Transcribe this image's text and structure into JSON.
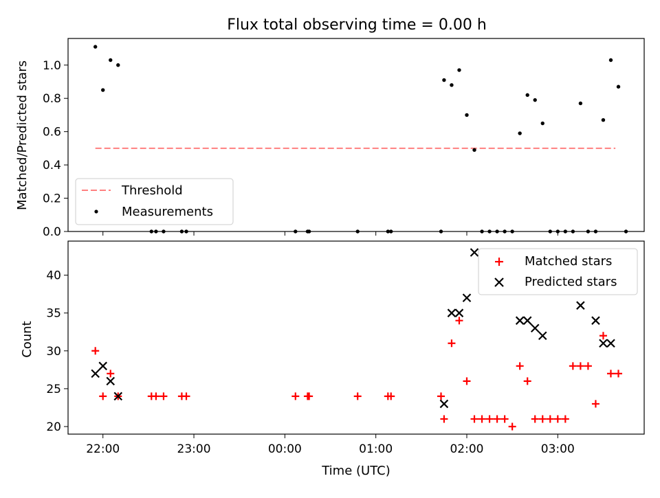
{
  "figure_title": "Flux total observing time = 0.00 h",
  "colors": {
    "matched": "#ff0000",
    "predicted": "#000000",
    "threshold": "#ff7f7f",
    "measure": "#000000"
  },
  "chart_data": [
    {
      "type": "scatter",
      "id": "ratio",
      "title": "Flux total observing time = 0.00 h",
      "xlabel": "",
      "ylabel": "Matched/Predicted stars",
      "xlim_minutes": [
        -23,
        357
      ],
      "ylim": [
        0,
        1.16
      ],
      "yticks": [
        0.0,
        0.2,
        0.4,
        0.6,
        0.8,
        1.0
      ],
      "ytick_labels": [
        "0.0",
        "0.2",
        "0.4",
        "0.6",
        "0.8",
        "1.0"
      ],
      "xticks_minutes": [
        0,
        60,
        120,
        180,
        240,
        300
      ],
      "legend_location": "lower-left",
      "legend": [
        "Threshold",
        "Measurements"
      ],
      "threshold": {
        "name": "Threshold",
        "value": 0.5,
        "x_range_minutes": [
          -5,
          338
        ]
      },
      "series": [
        {
          "name": "Measurements",
          "marker": "dot",
          "points": [
            [
              -5,
              1.11
            ],
            [
              0,
              0.85
            ],
            [
              5,
              1.03
            ],
            [
              10,
              1.0
            ],
            [
              32,
              0.0
            ],
            [
              35,
              0.0
            ],
            [
              40,
              0.0
            ],
            [
              52,
              0.0
            ],
            [
              55,
              0.0
            ],
            [
              127,
              0.0
            ],
            [
              135,
              0.0
            ],
            [
              136,
              0.0
            ],
            [
              168,
              0.0
            ],
            [
              188,
              0.0
            ],
            [
              190,
              0.0
            ],
            [
              223,
              0.0
            ],
            [
              225,
              0.91
            ],
            [
              230,
              0.88
            ],
            [
              235,
              0.97
            ],
            [
              240,
              0.7
            ],
            [
              245,
              0.49
            ],
            [
              250,
              0.0
            ],
            [
              255,
              0.0
            ],
            [
              260,
              0.0
            ],
            [
              265,
              0.0
            ],
            [
              270,
              0.0
            ],
            [
              275,
              0.59
            ],
            [
              280,
              0.82
            ],
            [
              285,
              0.79
            ],
            [
              290,
              0.65
            ],
            [
              295,
              0.0
            ],
            [
              300,
              0.0
            ],
            [
              305,
              0.0
            ],
            [
              310,
              0.0
            ],
            [
              315,
              0.77
            ],
            [
              320,
              0.0
            ],
            [
              325,
              0.0
            ],
            [
              330,
              0.67
            ],
            [
              335,
              1.03
            ],
            [
              340,
              0.87
            ],
            [
              345,
              0.0
            ]
          ]
        }
      ]
    },
    {
      "type": "scatter",
      "id": "count",
      "title": "",
      "xlabel": "Time (UTC)",
      "ylabel": "Count",
      "xlim_minutes": [
        -23,
        357
      ],
      "ylim": [
        19,
        44.5
      ],
      "yticks": [
        20,
        25,
        30,
        35,
        40
      ],
      "ytick_labels": [
        "20",
        "25",
        "30",
        "35",
        "40"
      ],
      "xticks_minutes": [
        0,
        60,
        120,
        180,
        240,
        300
      ],
      "xtick_labels": [
        "22:00",
        "23:00",
        "00:00",
        "01:00",
        "02:00",
        "03:00"
      ],
      "legend_location": "top-right",
      "legend": [
        "Matched stars",
        "Predicted stars"
      ],
      "series": [
        {
          "name": "Matched stars",
          "marker": "plus",
          "points": [
            [
              -5,
              30
            ],
            [
              0,
              24
            ],
            [
              5,
              27
            ],
            [
              10,
              24
            ],
            [
              32,
              24
            ],
            [
              35,
              24
            ],
            [
              40,
              24
            ],
            [
              52,
              24
            ],
            [
              55,
              24
            ],
            [
              127,
              24
            ],
            [
              135,
              24
            ],
            [
              136,
              24
            ],
            [
              168,
              24
            ],
            [
              188,
              24
            ],
            [
              190,
              24
            ],
            [
              223,
              24
            ],
            [
              225,
              21
            ],
            [
              230,
              31
            ],
            [
              235,
              34
            ],
            [
              240,
              26
            ],
            [
              245,
              21
            ],
            [
              250,
              21
            ],
            [
              255,
              21
            ],
            [
              260,
              21
            ],
            [
              265,
              21
            ],
            [
              270,
              20
            ],
            [
              275,
              28
            ],
            [
              280,
              26
            ],
            [
              285,
              21
            ],
            [
              290,
              21
            ],
            [
              295,
              21
            ],
            [
              300,
              21
            ],
            [
              305,
              21
            ],
            [
              310,
              28
            ],
            [
              315,
              28
            ],
            [
              320,
              28
            ],
            [
              325,
              23
            ],
            [
              330,
              32
            ],
            [
              335,
              27
            ],
            [
              340,
              27
            ]
          ]
        },
        {
          "name": "Predicted stars",
          "marker": "x",
          "points": [
            [
              -5,
              27
            ],
            [
              0,
              28
            ],
            [
              5,
              26
            ],
            [
              10,
              24
            ],
            [
              225,
              23
            ],
            [
              230,
              35
            ],
            [
              235,
              35
            ],
            [
              240,
              37
            ],
            [
              245,
              43
            ],
            [
              275,
              34
            ],
            [
              280,
              34
            ],
            [
              285,
              33
            ],
            [
              290,
              32
            ],
            [
              315,
              36
            ],
            [
              325,
              34
            ],
            [
              330,
              31
            ],
            [
              335,
              31
            ]
          ]
        }
      ]
    }
  ]
}
